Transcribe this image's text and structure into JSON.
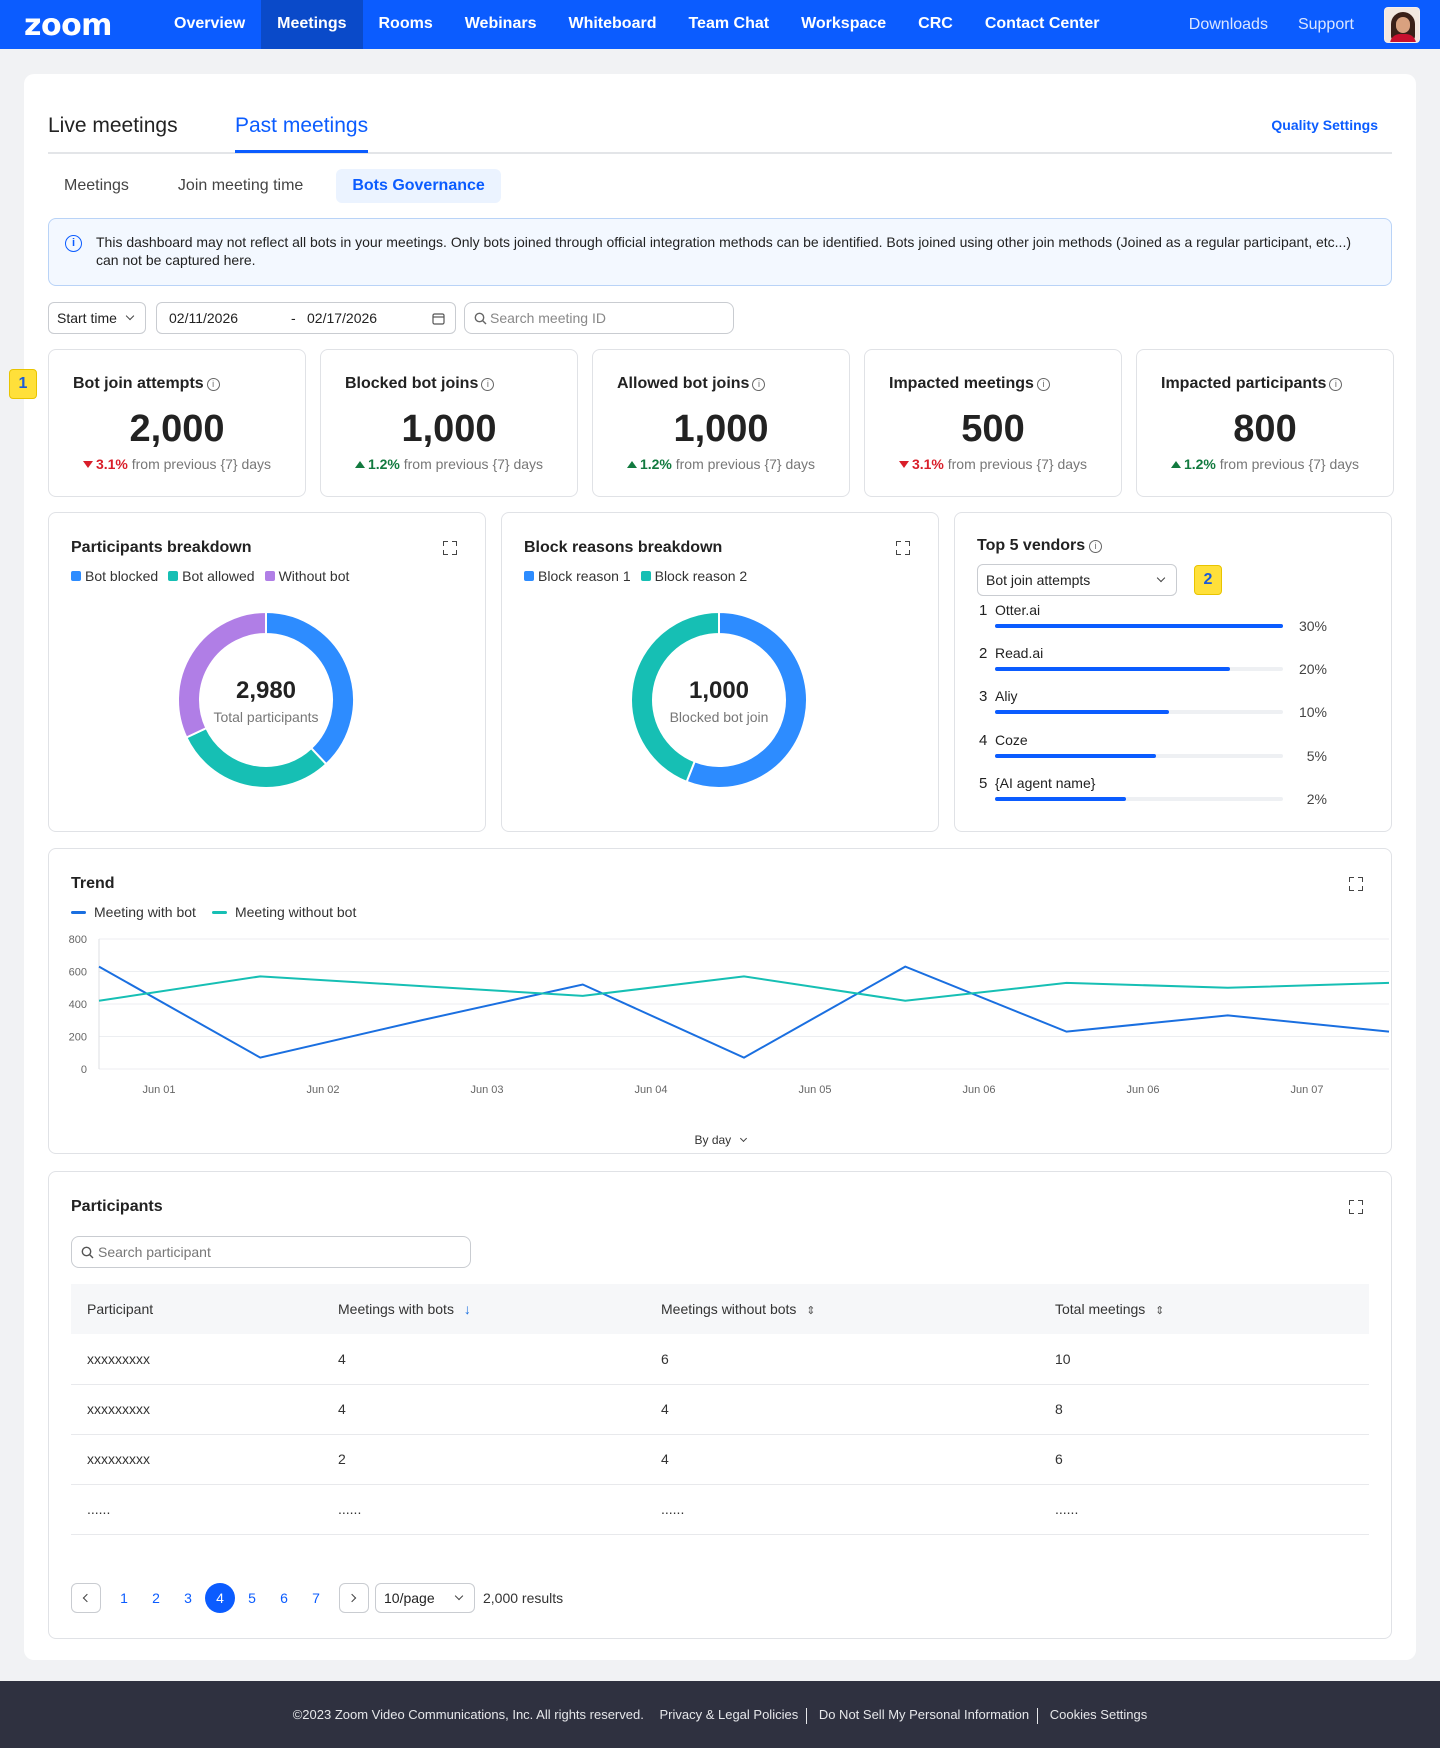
{
  "nav": {
    "logo": "zoom",
    "items": [
      "Overview",
      "Meetings",
      "Rooms",
      "Webinars",
      "Whiteboard",
      "Team Chat",
      "Workspace",
      "CRC",
      "Contact Center"
    ],
    "active_index": 1,
    "right_links": [
      "Downloads",
      "Support"
    ]
  },
  "tabs": {
    "live": "Live meetings",
    "past": "Past meetings",
    "quality_settings": "Quality Settings"
  },
  "subtabs": [
    "Meetings",
    "Join meeting time",
    "Bots Governance"
  ],
  "banner": {
    "text": "This dashboard may not reflect all bots in your meetings. Only bots joined through official integration methods can be identified. Bots joined using other join methods (Joined as a regular participant, etc...) can not be captured here."
  },
  "filters": {
    "time_select": "Start time",
    "date_from": "02/11/2026",
    "date_sep": "-",
    "date_to": "02/17/2026",
    "search_placeholder": "Search meeting ID"
  },
  "metrics": [
    {
      "title": "Bot join attempts",
      "value": "2,000",
      "delta": "3.1%",
      "direction": "down",
      "suffix": "from previous {7} days"
    },
    {
      "title": "Blocked bot joins",
      "value": "1,000",
      "delta": "1.2%",
      "direction": "up",
      "suffix": "from previous {7} days"
    },
    {
      "title": "Allowed bot joins",
      "value": "1,000",
      "delta": "1.2%",
      "direction": "up",
      "suffix": "from previous {7} days"
    },
    {
      "title": "Impacted meetings",
      "value": "500",
      "delta": "3.1%",
      "direction": "down",
      "suffix": "from previous {7} days"
    },
    {
      "title": "Impacted participants",
      "value": "800",
      "delta": "1.2%",
      "direction": "up",
      "suffix": "from previous {7} days"
    }
  ],
  "badges": [
    "1",
    "2"
  ],
  "participants_breakdown": {
    "title": "Participants breakdown",
    "legend": [
      {
        "label": "Bot blocked",
        "color": "#2d8cff"
      },
      {
        "label": "Bot allowed",
        "color": "#16bfb4"
      },
      {
        "label": "Without bot",
        "color": "#b07ee6"
      }
    ],
    "center_value": "2,980",
    "center_label": "Total participants"
  },
  "block_reasons": {
    "title": "Block reasons breakdown",
    "legend": [
      {
        "label": "Block reason 1",
        "color": "#2d8cff"
      },
      {
        "label": "Block reason 2",
        "color": "#16bfb4"
      }
    ],
    "center_value": "1,000",
    "center_label": "Blocked bot join"
  },
  "vendors": {
    "title": "Top 5 vendors",
    "select": "Bot join attempts",
    "items": [
      {
        "rank": "1",
        "name": "Otter.ai",
        "pct": "30%",
        "fill": 1.0
      },
      {
        "rank": "2",
        "name": "Read.ai",
        "pct": "20%",
        "fill": 0.815
      },
      {
        "rank": "3",
        "name": "Aliy",
        "pct": "10%",
        "fill": 0.605
      },
      {
        "rank": "4",
        "name": "Coze",
        "pct": "5%",
        "fill": 0.56
      },
      {
        "rank": "5",
        "name": "{AI agent name}",
        "pct": "2%",
        "fill": 0.455
      }
    ]
  },
  "trend": {
    "title": "Trend",
    "by_day": "By day"
  },
  "chart_data": [
    {
      "type": "pie",
      "title": "Participants breakdown",
      "labels": [
        "Bot blocked",
        "Bot allowed",
        "Without bot"
      ],
      "values": [
        38,
        30,
        32
      ],
      "center": "2,980"
    },
    {
      "type": "pie",
      "title": "Block reasons breakdown",
      "labels": [
        "Block reason 1",
        "Block reason 2"
      ],
      "values": [
        56,
        44
      ],
      "center": "1,000"
    },
    {
      "type": "line",
      "title": "Trend",
      "x_ticks": [
        "Jun 01",
        "Jun 02",
        "Jun 03",
        "Jun 04",
        "Jun 05",
        "Jun 06",
        "Jun 06",
        "Jun 07"
      ],
      "y_ticks": [
        "0",
        "200",
        "400",
        "600",
        "800"
      ],
      "ylim": [
        0,
        800
      ],
      "series": [
        {
          "name": "Meeting with bot",
          "color": "#1a6fe0",
          "values": [
            630,
            70,
            300,
            520,
            70,
            630,
            230,
            330,
            230
          ]
        },
        {
          "name": "Meeting without bot",
          "color": "#16bfb4",
          "values": [
            420,
            570,
            510,
            450,
            570,
            420,
            530,
            500,
            530
          ]
        }
      ]
    }
  ],
  "participants": {
    "title": "Participants",
    "search_placeholder": "Search participant",
    "columns": [
      "Participant",
      "Meetings with bots",
      "Meetings without bots",
      "Total meetings"
    ],
    "rows": [
      [
        "xxxxxxxxx",
        "4",
        "6",
        "10"
      ],
      [
        "xxxxxxxxx",
        "4",
        "4",
        "8"
      ],
      [
        "xxxxxxxxx",
        "2",
        "4",
        "6"
      ],
      [
        "......",
        "......",
        "......",
        "......"
      ]
    ],
    "pages": [
      "1",
      "2",
      "3",
      "4",
      "5",
      "6",
      "7"
    ],
    "active_page": "4",
    "per_page": "10/page",
    "results": "2,000 results"
  },
  "footer": {
    "copyright": "©2023 Zoom Video Communications, Inc. All rights reserved.",
    "links": [
      "Privacy & Legal Policies",
      "Do Not Sell My Personal Information",
      "Cookies Settings"
    ]
  }
}
